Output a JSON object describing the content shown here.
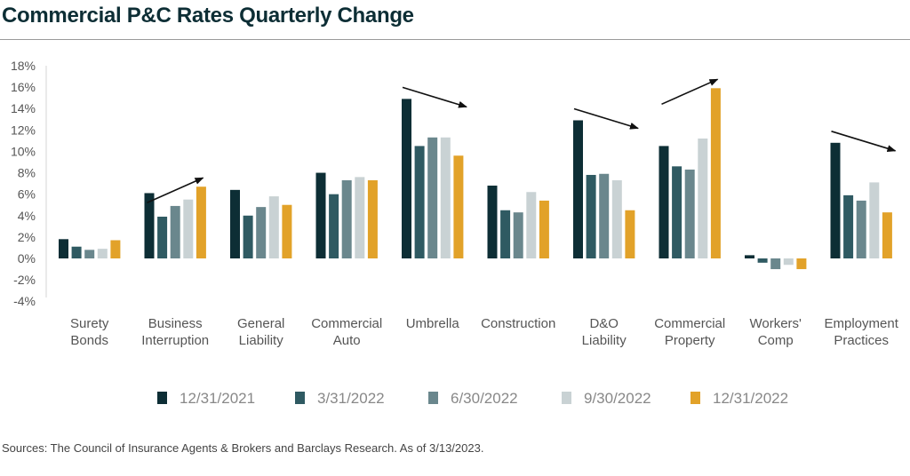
{
  "title": "Commercial P&C Rates Quarterly Change",
  "source": "Sources: The Council of Insurance Agents & Brokers and Barclays Research. As of 3/13/2023.",
  "chart_data": {
    "type": "bar",
    "title": "Commercial P&C Rates Quarterly Change",
    "xlabel": "",
    "ylabel": "",
    "ylim": [
      -4,
      18
    ],
    "yticks": [
      "18%",
      "16%",
      "14%",
      "12%",
      "10%",
      "8%",
      "6%",
      "4%",
      "2%",
      "0%",
      "-2%",
      "-4%"
    ],
    "grid": false,
    "legend_position": "bottom",
    "categories": [
      [
        "Surety",
        "Bonds"
      ],
      [
        "Business",
        "Interruption"
      ],
      [
        "General",
        "Liability"
      ],
      [
        "Commercial",
        "Auto"
      ],
      [
        "Umbrella"
      ],
      [
        "Construction"
      ],
      [
        "D&O",
        "Liability"
      ],
      [
        "Commercial",
        "Property"
      ],
      [
        "Workers'",
        "Comp"
      ],
      [
        "Employment",
        "Practices"
      ]
    ],
    "series": [
      {
        "name": "12/31/2021",
        "color": "#0d2e35",
        "values": [
          1.8,
          6.1,
          6.4,
          8.0,
          14.9,
          6.8,
          12.9,
          10.5,
          0.3,
          10.8
        ]
      },
      {
        "name": "3/31/2022",
        "color": "#2f5a62",
        "values": [
          1.1,
          3.9,
          4.0,
          6.0,
          10.5,
          4.5,
          7.8,
          8.6,
          -0.4,
          5.9
        ]
      },
      {
        "name": "6/30/2022",
        "color": "#6a878d",
        "values": [
          0.8,
          4.9,
          4.8,
          7.3,
          11.3,
          4.3,
          7.9,
          8.3,
          -1.0,
          5.4
        ]
      },
      {
        "name": "9/30/2022",
        "color": "#c9d2d4",
        "values": [
          0.9,
          5.5,
          5.8,
          7.6,
          11.3,
          6.2,
          7.3,
          11.2,
          -0.6,
          7.1
        ]
      },
      {
        "name": "12/31/2022",
        "color": "#e2a229",
        "values": [
          1.7,
          6.7,
          5.0,
          7.3,
          9.6,
          5.4,
          4.5,
          15.9,
          -1.0,
          4.3
        ]
      }
    ],
    "trend_arrows": [
      {
        "category": "Business Interruption",
        "direction": "up"
      },
      {
        "category": "Umbrella",
        "direction": "down"
      },
      {
        "category": "D&O Liability",
        "direction": "down"
      },
      {
        "category": "Commercial Property",
        "direction": "up"
      },
      {
        "category": "Employment Practices",
        "direction": "down"
      }
    ]
  }
}
